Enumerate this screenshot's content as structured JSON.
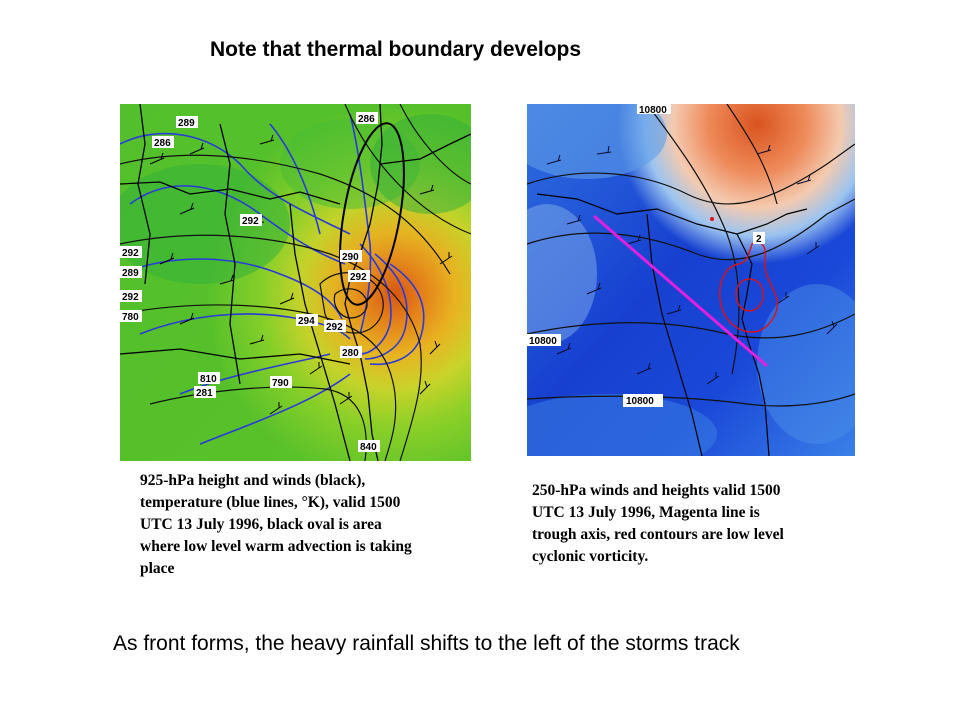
{
  "slide": {
    "title": "Note that thermal boundary develops",
    "footer": "As front forms,  the heavy rainfall shifts to the left of the storms track"
  },
  "left_map": {
    "caption_lines": [
      "925-hPa height and winds (black),",
      "temperature (blue lines, °K),  valid 1500",
      "UTC 13 July 1996, black oval is area",
      "where low level warm advection is taking",
      "place"
    ],
    "contour_labels": [
      "289",
      "286",
      "286",
      "292",
      "292",
      "289",
      "290",
      "292",
      "294",
      "292",
      "292",
      "280",
      "780",
      "790",
      "281",
      "810",
      "840"
    ]
  },
  "right_map": {
    "caption_lines": [
      "250-hPa winds and heights valid 1500",
      "UTC 13 July 1996, Magenta line is",
      "trough axis, red contours are low level",
      "cyclonic vorticity."
    ],
    "contour_labels": [
      "10800",
      "10800",
      "10800",
      "2"
    ]
  },
  "colors": {
    "trough_axis": "#e020e0",
    "vorticity": "#e01010",
    "isotherms": "#2a3ad8"
  }
}
